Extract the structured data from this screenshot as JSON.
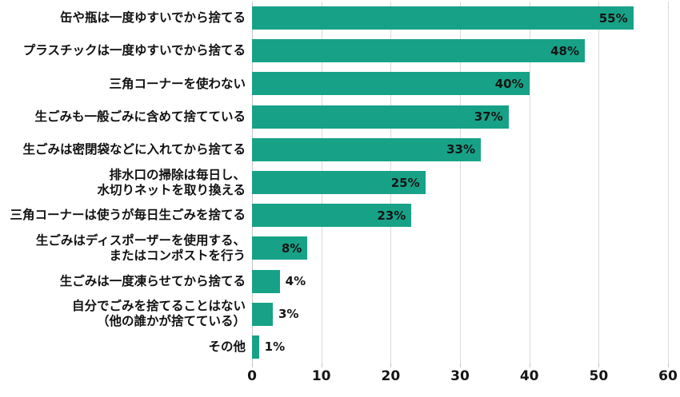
{
  "chart_data": {
    "type": "bar",
    "orientation": "horizontal",
    "title": "",
    "xlabel": "",
    "ylabel": "",
    "xlim": [
      0,
      60
    ],
    "x_ticks": [
      0,
      10,
      20,
      30,
      40,
      50,
      60
    ],
    "grid": true,
    "bar_color": "#17a287",
    "grid_color": "#d9d9d9",
    "axis_line_color": "#c6c6c6",
    "label_color": "#111111",
    "value_label_color": "#151515",
    "categories": [
      [
        "缶や瓶は一度ゆすいでから捨てる"
      ],
      [
        "プラスチックは一度ゆすいでから捨てる"
      ],
      [
        "三角コーナーを使わない"
      ],
      [
        "生ごみも一般ごみに含めて捨てている"
      ],
      [
        "生ごみは密閉袋などに入れてから捨てる"
      ],
      [
        "排水口の掃除は毎日し、",
        "水切りネットを取り換える"
      ],
      [
        "三角コーナーは使うが毎日生ごみを捨てる"
      ],
      [
        "生ごみはディスポーザーを使用する、",
        "またはコンポストを行う"
      ],
      [
        "生ごみは一度凍らせてから捨てる"
      ],
      [
        "自分でごみを捨てることはない",
        "（他の誰かが捨てている）"
      ],
      [
        "その他"
      ]
    ],
    "values": [
      55,
      48,
      40,
      37,
      33,
      25,
      23,
      8,
      4,
      3,
      1
    ],
    "value_labels": [
      "55%",
      "48%",
      "40%",
      "37%",
      "33%",
      "25%",
      "23%",
      "8%",
      "4%",
      "3%",
      "1%"
    ]
  }
}
